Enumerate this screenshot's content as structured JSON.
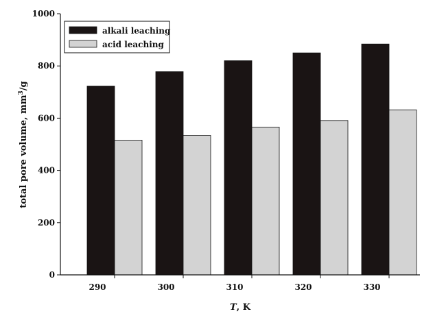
{
  "chart_data": {
    "type": "bar",
    "xlabel_italic": "T",
    "xlabel_rest": ", K",
    "ylabel_main": "total pore volume, mm",
    "ylabel_sup": "3",
    "ylabel_end": "/g",
    "categories": [
      "290",
      "300",
      "310",
      "320",
      "330"
    ],
    "ylim": [
      0,
      1000
    ],
    "yticks": [
      0,
      200,
      400,
      600,
      800,
      1000
    ],
    "grid": false,
    "legend_position": "top-left",
    "series": [
      {
        "name": "alkali leaching",
        "color": "#1a1414",
        "values": [
          723,
          778,
          820,
          850,
          884
        ]
      },
      {
        "name": "acid leaching",
        "color": "#d3d3d3",
        "values": [
          516,
          534,
          566,
          591,
          632
        ]
      }
    ]
  }
}
